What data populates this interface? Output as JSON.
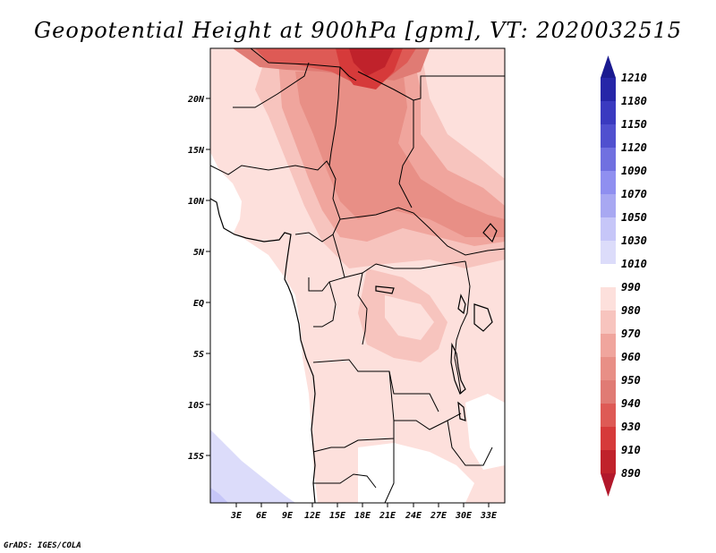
{
  "title": "Geopotential Height at 900hPa [gpm], VT: 2020032515",
  "credit": "GrADS: IGES/COLA",
  "map": {
    "lat_labels": [
      "20N",
      "15N",
      "10N",
      "5N",
      "EQ",
      "5S",
      "10S",
      "15S"
    ],
    "lon_labels": [
      "3E",
      "6E",
      "9E",
      "12E",
      "15E",
      "18E",
      "21E",
      "24E",
      "27E",
      "30E",
      "33E"
    ]
  },
  "colorbar": {
    "levels": [
      "890",
      "910",
      "930",
      "940",
      "950",
      "960",
      "970",
      "980",
      "990",
      "1010",
      "1030",
      "1050",
      "1070",
      "1090",
      "1120",
      "1150",
      "1180",
      "1210"
    ],
    "colors": {
      "below_890": "#b2182b",
      "890_910": "#c0222b",
      "910_930": "#d63a3a",
      "930_940": "#de5a55",
      "940_950": "#e07b74",
      "950_960": "#e88f86",
      "960_970": "#f0a59d",
      "970_980": "#f7c4be",
      "980_990": "#fde0dc",
      "990_1010": "#ffffff",
      "1010_1030": "#dcdcfa",
      "1030_1050": "#c6c6f8",
      "1050_1070": "#a8a8f2",
      "1070_1090": "#8f8ff0",
      "1090_1120": "#7070e0",
      "1120_1150": "#5050cf",
      "1150_1180": "#3a3ac0",
      "1180_1210": "#2626a8",
      "above_1210": "#1a1a90"
    }
  }
}
